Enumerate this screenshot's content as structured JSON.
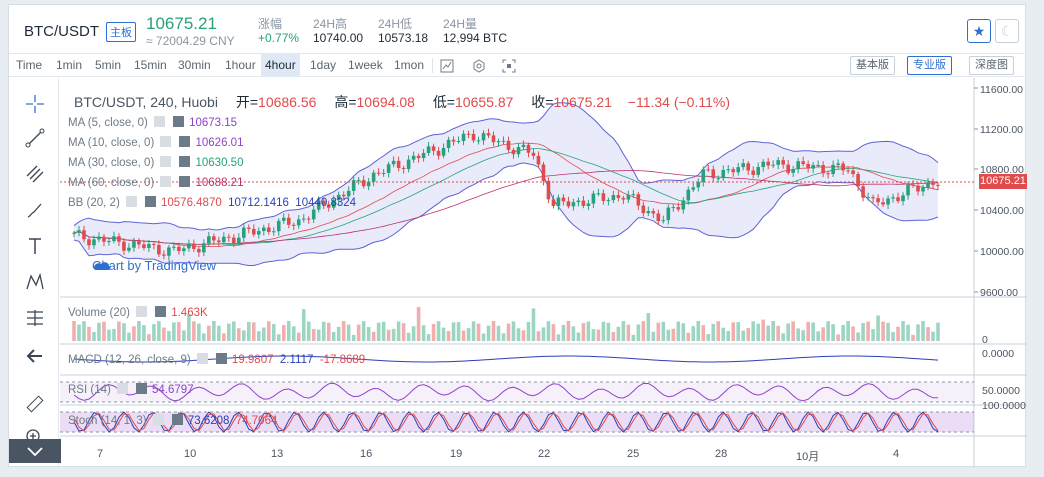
{
  "header": {
    "pair": "BTC/USDT",
    "tag": "主板",
    "price": "10675.21",
    "cny": "≈ 72004.29 CNY",
    "stats": [
      {
        "label": "涨幅",
        "value": "+0.77%"
      },
      {
        "label": "24H高",
        "value": "10740.00"
      },
      {
        "label": "24H低",
        "value": "10573.18"
      },
      {
        "label": "24H量",
        "value": "12,994 BTC"
      }
    ]
  },
  "toolbar": {
    "timeframes": [
      "Time",
      "1min",
      "5min",
      "15min",
      "30min",
      "1hour",
      "4hour",
      "1day",
      "1week",
      "1mon"
    ],
    "active_timeframe": "4hour",
    "views": [
      "基本版",
      "专业版",
      "深度图"
    ],
    "active_view": "专业版"
  },
  "chart_legend": {
    "symbol": "BTC/USDT, 240, Huobi",
    "ohlc": [
      {
        "label": "开=",
        "value": "10686.56"
      },
      {
        "label": "高=",
        "value": "10694.08"
      },
      {
        "label": "低=",
        "value": "10655.87"
      },
      {
        "label": "收=",
        "value": "10675.21"
      }
    ],
    "change": "−11.34 (−0.11%)",
    "indicators": [
      {
        "name": "MA (5, close, 0)",
        "value": "10673.15",
        "color": "#8e44c9"
      },
      {
        "name": "MA (10, close, 0)",
        "value": "10626.01",
        "color": "#8e44c9"
      },
      {
        "name": "MA (30, close, 0)",
        "value": "10630.50",
        "color": "#26a17b"
      },
      {
        "name": "MA (60, close, 0)",
        "value": "10688.21",
        "color": "#c0306b"
      }
    ],
    "bb": {
      "name": "BB (20, 2)",
      "values": [
        "10576.4870",
        "10712.1416",
        "10440.8324"
      ],
      "colors": [
        "#e04b4b",
        "#2a3fb8",
        "#2a3fb8"
      ]
    },
    "volume": {
      "name": "Volume (20)",
      "value": "1.463K"
    },
    "macd": {
      "name": "MACD (12, 26, close, 9)",
      "values": [
        "19.9807",
        "2.1117",
        "-17.8689"
      ]
    },
    "rsi": {
      "name": "RSI (14)",
      "value": "54.6797"
    },
    "stoch": {
      "name": "Stoch (14, 1, 3)",
      "values": [
        "73.6208",
        "74.7064"
      ]
    }
  },
  "watermark": "Chart by TradingView",
  "price_axis": [
    "11600.00",
    "11200.00",
    "10800.00",
    "10400.00",
    "10000.00",
    "9600.00"
  ],
  "last_price_label": "10675.21",
  "volume_axis": "0",
  "macd_axis": "0.0000",
  "rsi_axis": "50.0000",
  "stoch_axis": "100.0000",
  "date_axis": [
    "7",
    "10",
    "13",
    "16",
    "19",
    "22",
    "25",
    "28",
    "10月",
    "4"
  ],
  "colors": {
    "up": "#26a17b",
    "down": "#e04b4b",
    "band": "#5d63d6"
  },
  "icons": [
    "crosshair-icon",
    "trendline-icon",
    "pitchfork-icon",
    "brush-icon",
    "text-icon",
    "pattern-icon",
    "measure-icon",
    "back-arrow-icon",
    "ruler-icon",
    "zoom-icon",
    "star-icon",
    "moon-icon"
  ]
}
